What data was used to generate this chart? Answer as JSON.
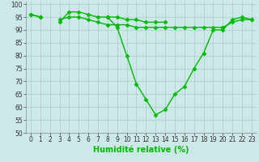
{
  "xlabel": "Humidité relative (%)",
  "ylabel": "",
  "bg_color": "#cce8e8",
  "line_color": "#00bb00",
  "grid_color": "#aacccc",
  "x": [
    0,
    1,
    2,
    3,
    4,
    5,
    6,
    7,
    8,
    9,
    10,
    11,
    12,
    13,
    14,
    15,
    16,
    17,
    18,
    19,
    20,
    21,
    22,
    23
  ],
  "line1": [
    96,
    95,
    null,
    93,
    97,
    97,
    96,
    95,
    95,
    91,
    80,
    69,
    63,
    57,
    59,
    65,
    68,
    75,
    81,
    90,
    90,
    94,
    95,
    94
  ],
  "line2": [
    96,
    95,
    null,
    94,
    95,
    95,
    94,
    93,
    92,
    92,
    92,
    91,
    91,
    91,
    91,
    91,
    91,
    91,
    91,
    91,
    91,
    93,
    94,
    94
  ],
  "line3": [
    null,
    null,
    null,
    null,
    null,
    null,
    null,
    null,
    95,
    95,
    94,
    94,
    93,
    93,
    93,
    null,
    null,
    null,
    null,
    null,
    null,
    null,
    null,
    null
  ],
  "ylim": [
    50,
    101
  ],
  "xlim": [
    -0.5,
    23.5
  ],
  "yticks": [
    50,
    55,
    60,
    65,
    70,
    75,
    80,
    85,
    90,
    95,
    100
  ],
  "xticks": [
    0,
    1,
    2,
    3,
    4,
    5,
    6,
    7,
    8,
    9,
    10,
    11,
    12,
    13,
    14,
    15,
    16,
    17,
    18,
    19,
    20,
    21,
    22,
    23
  ],
  "marker": "D",
  "markersize": 2.5,
  "linewidth": 1.0,
  "xlabel_fontsize": 7,
  "tick_fontsize": 5.5
}
